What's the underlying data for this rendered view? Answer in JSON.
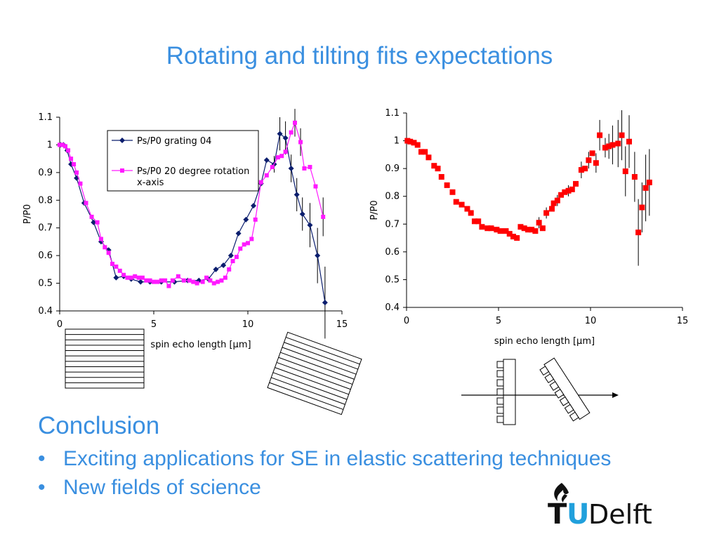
{
  "slide": {
    "title": "Rotating and tilting fits expectations",
    "conclusion_heading": "Conclusion",
    "bullets": [
      "Exciting applications for SE in elastic scattering techniques",
      "New fields of science"
    ]
  },
  "logo": {
    "text_t": "T",
    "text_u": "U",
    "text_delft": "Delft",
    "icon": "flame-icon"
  },
  "colors": {
    "accent": "#3a8fe0",
    "series_navy": "#0b1e6e",
    "series_magenta": "#ff1aff",
    "series_red": "#ff0000",
    "logo_blue": "#21a0dc"
  },
  "chart_data": [
    {
      "type": "line",
      "title": "",
      "xlabel": "spin echo length [μm]",
      "ylabel": "P/P0",
      "xlim": [
        0,
        15
      ],
      "ylim": [
        0.4,
        1.1
      ],
      "xticks": [
        "0",
        "5",
        "10",
        "15"
      ],
      "yticks": [
        "0.4",
        "0.5",
        "0.6",
        "0.7",
        "0.8",
        "0.9",
        "1",
        "1.1"
      ],
      "grid": false,
      "legend_position": "top-center",
      "series": [
        {
          "name": "Ps/P0 grating 04",
          "color": "#0b1e6e",
          "marker": "diamond",
          "points": [
            [
              0.05,
              1.0
            ],
            [
              0.2,
              1.0
            ],
            [
              0.4,
              0.98
            ],
            [
              0.6,
              0.93
            ],
            [
              0.9,
              0.88
            ],
            [
              1.3,
              0.79
            ],
            [
              1.8,
              0.72
            ],
            [
              2.2,
              0.65
            ],
            [
              2.6,
              0.62
            ],
            [
              3.0,
              0.52
            ],
            [
              3.4,
              0.525
            ],
            [
              3.8,
              0.515
            ],
            [
              4.3,
              0.505
            ],
            [
              4.8,
              0.505
            ],
            [
              5.4,
              0.505
            ],
            [
              6.1,
              0.505
            ],
            [
              6.8,
              0.51
            ],
            [
              7.4,
              0.51
            ],
            [
              7.9,
              0.515
            ],
            [
              8.3,
              0.55
            ],
            [
              8.7,
              0.565
            ],
            [
              9.1,
              0.6
            ],
            [
              9.5,
              0.68
            ],
            [
              9.9,
              0.73
            ],
            [
              10.3,
              0.78
            ],
            [
              10.7,
              0.86
            ],
            [
              11.0,
              0.945
            ],
            [
              11.4,
              0.93
            ],
            [
              11.7,
              1.04
            ],
            [
              12.0,
              1.025
            ],
            [
              12.3,
              0.915
            ],
            [
              12.6,
              0.82
            ],
            [
              12.9,
              0.75
            ],
            [
              13.3,
              0.71
            ],
            [
              13.7,
              0.6
            ],
            [
              14.1,
              0.43
            ]
          ],
          "errors": [
            [
              11.4,
              0.03
            ],
            [
              11.7,
              0.06
            ],
            [
              12.0,
              0.06
            ],
            [
              12.3,
              0.05
            ],
            [
              12.6,
              0.06
            ],
            [
              12.9,
              0.06
            ],
            [
              13.3,
              0.08
            ],
            [
              13.7,
              0.1
            ],
            [
              14.1,
              0.13
            ]
          ]
        },
        {
          "name": "Ps/P0 20 degree rotation x-axis",
          "color": "#ff1aff",
          "marker": "square",
          "points": [
            [
              0.0,
              1.0
            ],
            [
              0.15,
              1.0
            ],
            [
              0.3,
              0.995
            ],
            [
              0.45,
              0.98
            ],
            [
              0.6,
              0.95
            ],
            [
              0.75,
              0.93
            ],
            [
              0.9,
              0.9
            ],
            [
              1.1,
              0.86
            ],
            [
              1.4,
              0.79
            ],
            [
              1.7,
              0.74
            ],
            [
              2.0,
              0.72
            ],
            [
              2.2,
              0.66
            ],
            [
              2.4,
              0.63
            ],
            [
              2.6,
              0.61
            ],
            [
              2.8,
              0.57
            ],
            [
              3.0,
              0.56
            ],
            [
              3.2,
              0.545
            ],
            [
              3.4,
              0.53
            ],
            [
              3.6,
              0.52
            ],
            [
              3.8,
              0.52
            ],
            [
              4.0,
              0.525
            ],
            [
              4.2,
              0.52
            ],
            [
              4.4,
              0.52
            ],
            [
              4.6,
              0.51
            ],
            [
              4.8,
              0.51
            ],
            [
              5.0,
              0.505
            ],
            [
              5.2,
              0.505
            ],
            [
              5.4,
              0.51
            ],
            [
              5.6,
              0.51
            ],
            [
              5.8,
              0.49
            ],
            [
              6.0,
              0.51
            ],
            [
              6.3,
              0.525
            ],
            [
              6.6,
              0.51
            ],
            [
              6.9,
              0.51
            ],
            [
              7.1,
              0.505
            ],
            [
              7.3,
              0.5
            ],
            [
              7.6,
              0.505
            ],
            [
              7.8,
              0.52
            ],
            [
              8.0,
              0.51
            ],
            [
              8.2,
              0.5
            ],
            [
              8.4,
              0.505
            ],
            [
              8.6,
              0.51
            ],
            [
              8.8,
              0.52
            ],
            [
              9.0,
              0.55
            ],
            [
              9.2,
              0.58
            ],
            [
              9.4,
              0.595
            ],
            [
              9.6,
              0.625
            ],
            [
              9.8,
              0.64
            ],
            [
              10.0,
              0.645
            ],
            [
              10.2,
              0.66
            ],
            [
              10.4,
              0.73
            ],
            [
              10.7,
              0.865
            ],
            [
              11.0,
              0.89
            ],
            [
              11.3,
              0.92
            ],
            [
              11.6,
              0.955
            ],
            [
              11.8,
              0.96
            ],
            [
              12.0,
              0.975
            ],
            [
              12.3,
              1.045
            ],
            [
              12.5,
              1.08
            ],
            [
              12.8,
              1.01
            ],
            [
              13.0,
              0.915
            ],
            [
              13.3,
              0.92
            ],
            [
              13.6,
              0.85
            ],
            [
              14.0,
              0.74
            ]
          ],
          "errors": [
            [
              12.5,
              0.05
            ],
            [
              12.8,
              0.05
            ],
            [
              14.0,
              0.07
            ]
          ]
        }
      ]
    },
    {
      "type": "scatter",
      "title": "",
      "xlabel": "spin echo length [μm]",
      "ylabel": "P/P0",
      "xlim": [
        0,
        15
      ],
      "ylim": [
        0.4,
        1.1
      ],
      "xticks": [
        "0",
        "5",
        "10",
        "15"
      ],
      "yticks": [
        "0.4",
        "0.5",
        "0.6",
        "0.7",
        "0.8",
        "0.9",
        "1",
        "1.1"
      ],
      "grid": false,
      "series": [
        {
          "color": "#ff0000",
          "marker": "square",
          "points": [
            [
              0.05,
              1.0
            ],
            [
              0.2,
              0.997
            ],
            [
              0.4,
              0.993
            ],
            [
              0.6,
              0.985
            ],
            [
              0.8,
              0.96
            ],
            [
              1.0,
              0.96
            ],
            [
              1.2,
              0.94
            ],
            [
              1.5,
              0.91
            ],
            [
              1.7,
              0.9
            ],
            [
              1.9,
              0.87
            ],
            [
              2.2,
              0.84
            ],
            [
              2.5,
              0.815
            ],
            [
              2.7,
              0.78
            ],
            [
              3.0,
              0.77
            ],
            [
              3.3,
              0.755
            ],
            [
              3.5,
              0.74
            ],
            [
              3.7,
              0.71
            ],
            [
              3.9,
              0.71
            ],
            [
              4.1,
              0.69
            ],
            [
              4.4,
              0.685
            ],
            [
              4.6,
              0.685
            ],
            [
              4.9,
              0.68
            ],
            [
              5.1,
              0.675
            ],
            [
              5.4,
              0.675
            ],
            [
              5.6,
              0.665
            ],
            [
              5.8,
              0.655
            ],
            [
              6.0,
              0.65
            ],
            [
              6.2,
              0.69
            ],
            [
              6.4,
              0.685
            ],
            [
              6.6,
              0.68
            ],
            [
              6.8,
              0.68
            ],
            [
              7.0,
              0.675
            ],
            [
              7.2,
              0.705
            ],
            [
              7.4,
              0.685
            ],
            [
              7.6,
              0.74
            ],
            [
              7.9,
              0.755
            ],
            [
              8.0,
              0.775
            ],
            [
              8.2,
              0.785
            ],
            [
              8.4,
              0.805
            ],
            [
              8.6,
              0.815
            ],
            [
              8.8,
              0.82
            ],
            [
              9.0,
              0.825
            ],
            [
              9.2,
              0.845
            ],
            [
              9.5,
              0.895
            ],
            [
              9.7,
              0.9
            ],
            [
              9.9,
              0.93
            ],
            [
              10.1,
              0.955
            ],
            [
              10.3,
              0.92
            ],
            [
              10.5,
              1.02
            ],
            [
              10.8,
              0.975
            ],
            [
              11.0,
              0.98
            ],
            [
              11.2,
              0.985
            ],
            [
              11.5,
              0.99
            ],
            [
              11.7,
              1.02
            ],
            [
              11.9,
              0.89
            ],
            [
              12.1,
              0.997
            ],
            [
              12.4,
              0.87
            ],
            [
              12.6,
              0.67
            ],
            [
              12.8,
              0.76
            ],
            [
              13.0,
              0.83
            ],
            [
              13.2,
              0.85
            ]
          ],
          "errors": [
            [
              7.2,
              0.02
            ],
            [
              7.6,
              0.02
            ],
            [
              8.2,
              0.02
            ],
            [
              8.8,
              0.02
            ],
            [
              9.5,
              0.03
            ],
            [
              9.9,
              0.03
            ],
            [
              10.3,
              0.035
            ],
            [
              10.5,
              0.055
            ],
            [
              10.8,
              0.035
            ],
            [
              11.0,
              0.045
            ],
            [
              11.2,
              0.07
            ],
            [
              11.5,
              0.085
            ],
            [
              11.7,
              0.09
            ],
            [
              11.9,
              0.09
            ],
            [
              12.1,
              0.095
            ],
            [
              12.4,
              0.09
            ],
            [
              12.6,
              0.12
            ],
            [
              12.8,
              0.09
            ],
            [
              13.0,
              0.12
            ],
            [
              13.2,
              0.12
            ]
          ]
        }
      ]
    }
  ]
}
